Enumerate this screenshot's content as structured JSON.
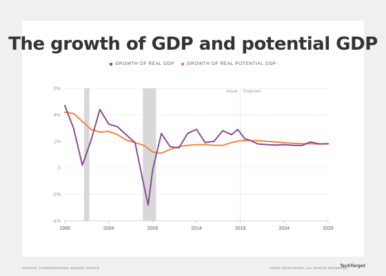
{
  "title": "The growth of GDP and potential GDP",
  "source": "SOURCE: CONGRESSIONAL BUDGET OFFICE",
  "copyright": "©2019 TECHTARGET. ALL RIGHTS RESERVED",
  "brand": "TechTarget",
  "colors": {
    "real_gdp": "#8a4a95",
    "potential_gdp": "#ee8547",
    "recession": "#d8d8d8",
    "grid": "#d6d6d6"
  },
  "chart_data": {
    "type": "line",
    "xlim": [
      1999,
      2029
    ],
    "ylim": [
      -4,
      6
    ],
    "x_ticks": [
      "1999",
      "2004",
      "2009",
      "2014",
      "2019",
      "2024",
      "2029"
    ],
    "y_ticks": [
      "6%",
      "4%",
      "2%",
      "0",
      "-2%",
      "-4%"
    ],
    "y_tick_values": [
      6,
      4,
      2,
      0,
      -2,
      -4
    ],
    "x_tick_values": [
      1999,
      2004,
      2009,
      2014,
      2019,
      2024,
      2029
    ],
    "grid": "horizontal",
    "legend": "top",
    "annotations": {
      "actual": "Actual",
      "projected": "Projected",
      "divider_x": 2019
    },
    "recessions": [
      [
        2001.2,
        2001.8
      ],
      [
        2007.9,
        2009.4
      ]
    ],
    "series": [
      {
        "name": "GROWTH OF REAL GDP",
        "x": [
          1999,
          2000,
          2001,
          2002,
          2003,
          2004,
          2005,
          2006,
          2007,
          2008,
          2008.5,
          2009,
          2010,
          2011,
          2012,
          2013,
          2014,
          2015,
          2016,
          2017,
          2018,
          2018.7,
          2019.5,
          2020,
          2021,
          2022,
          2023,
          2024,
          2025,
          2026,
          2027,
          2028,
          2029
        ],
        "y": [
          4.7,
          3.0,
          0.2,
          2.1,
          4.4,
          3.3,
          3.1,
          2.5,
          1.9,
          -1.3,
          -2.8,
          -0.2,
          2.6,
          1.6,
          1.5,
          2.6,
          2.9,
          1.9,
          2.0,
          2.8,
          2.5,
          2.9,
          2.2,
          2.1,
          1.8,
          1.75,
          1.72,
          1.75,
          1.7,
          1.68,
          1.95,
          1.8,
          1.82
        ]
      },
      {
        "name": "GROWTH OF REAL POTENTIAL GDP",
        "x": [
          1999,
          2000,
          2001,
          2002,
          2003,
          2004,
          2005,
          2006,
          2007,
          2008,
          2009,
          2010,
          2011,
          2012,
          2013,
          2014,
          2015,
          2016,
          2017,
          2018,
          2019,
          2020,
          2021,
          2022,
          2023,
          2024,
          2025,
          2026,
          2027,
          2028,
          2029
        ],
        "y": [
          4.2,
          4.1,
          3.5,
          2.9,
          2.7,
          2.75,
          2.5,
          2.1,
          1.9,
          1.7,
          1.2,
          1.1,
          1.4,
          1.6,
          1.7,
          1.75,
          1.75,
          1.7,
          1.7,
          1.9,
          2.05,
          2.05,
          2.05,
          2.0,
          1.95,
          1.9,
          1.85,
          1.82,
          1.82,
          1.8,
          1.8
        ]
      }
    ]
  }
}
